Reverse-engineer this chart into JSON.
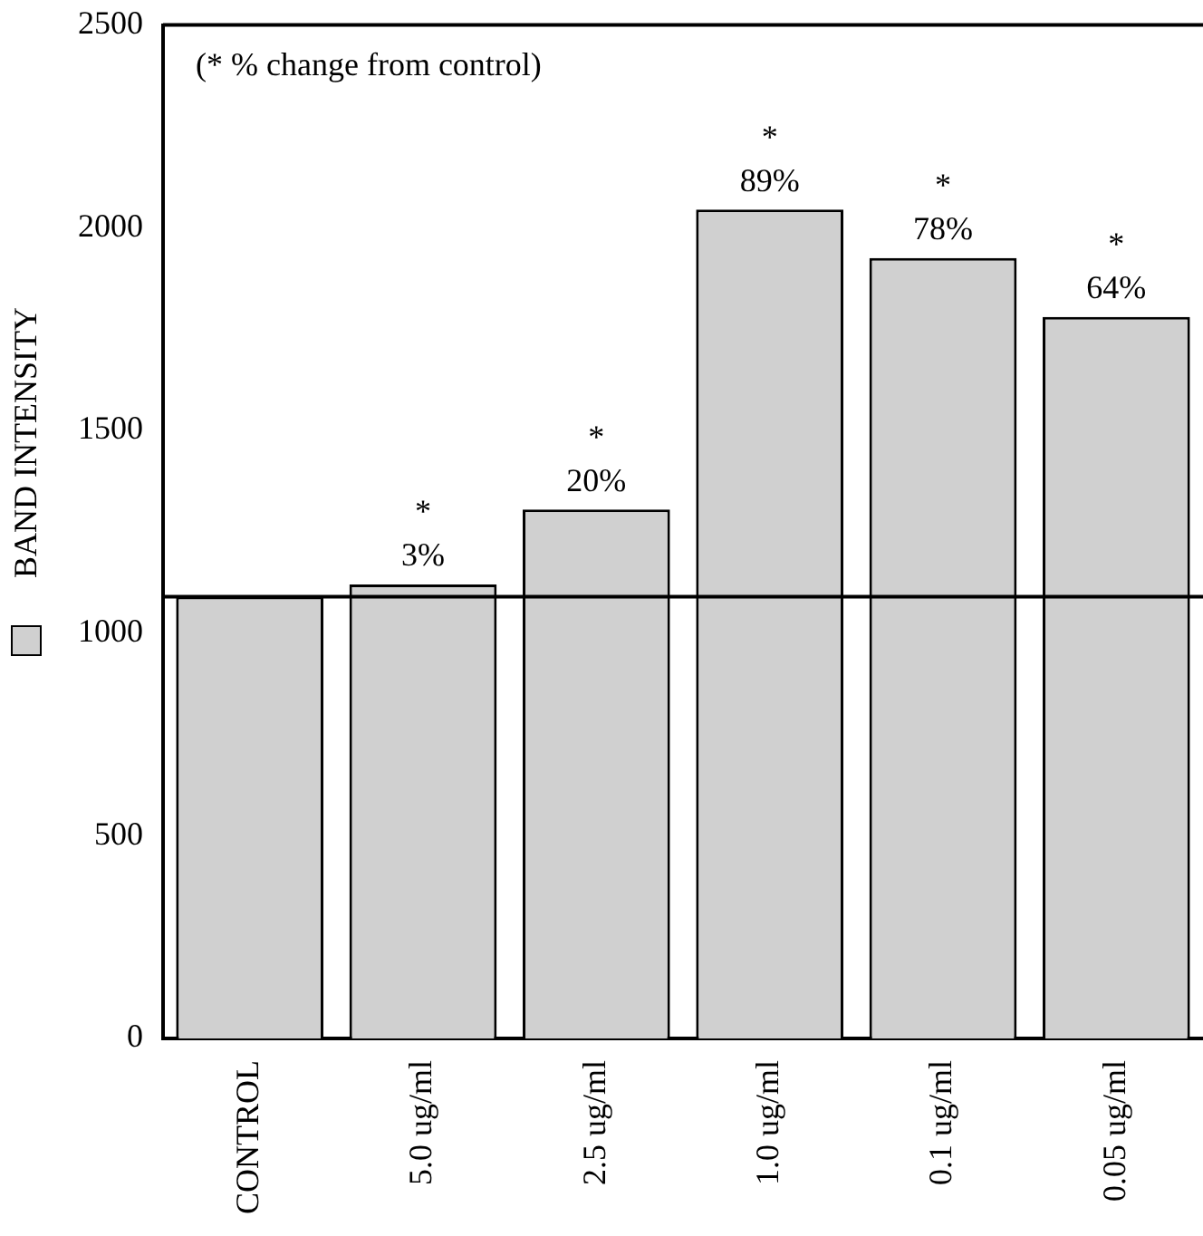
{
  "chart_data": {
    "type": "bar",
    "categories": [
      "CONTROL",
      "5.0 ug/ml",
      "2.5 ug/ml",
      "1.0 ug/ml",
      "0.1 ug/ml",
      "0.05 ug/ml"
    ],
    "series": [
      {
        "name": "BAND INTENSITY",
        "color": "#d0d0d0",
        "values": [
          1090,
          1120,
          1305,
          2045,
          1925,
          1780
        ]
      }
    ],
    "ylim": [
      0,
      2500
    ],
    "yticks": [
      0,
      500,
      1000,
      1500,
      2000,
      2500
    ],
    "ref_lines": [
      {
        "axis": "y",
        "value": 1090,
        "color": "#000000",
        "line_style": "solid"
      }
    ],
    "annotations": [
      "(* % change from control)",
      {
        "text": "*\n3%",
        "x": "5.0 ug/ml",
        "y": 1120
      },
      {
        "text": "*\n20%",
        "x": "2.5 ug/ml",
        "y": 1305
      },
      {
        "text": "*\n89%",
        "x": "1.0 ug/ml",
        "y": 2045
      },
      {
        "text": "*\n78%",
        "x": "0.1 ug/ml",
        "y": 1925
      },
      {
        "text": "*\n64%",
        "x": "0.05 ug/ml",
        "y": 1780
      }
    ],
    "grid": false,
    "legend": "left"
  }
}
